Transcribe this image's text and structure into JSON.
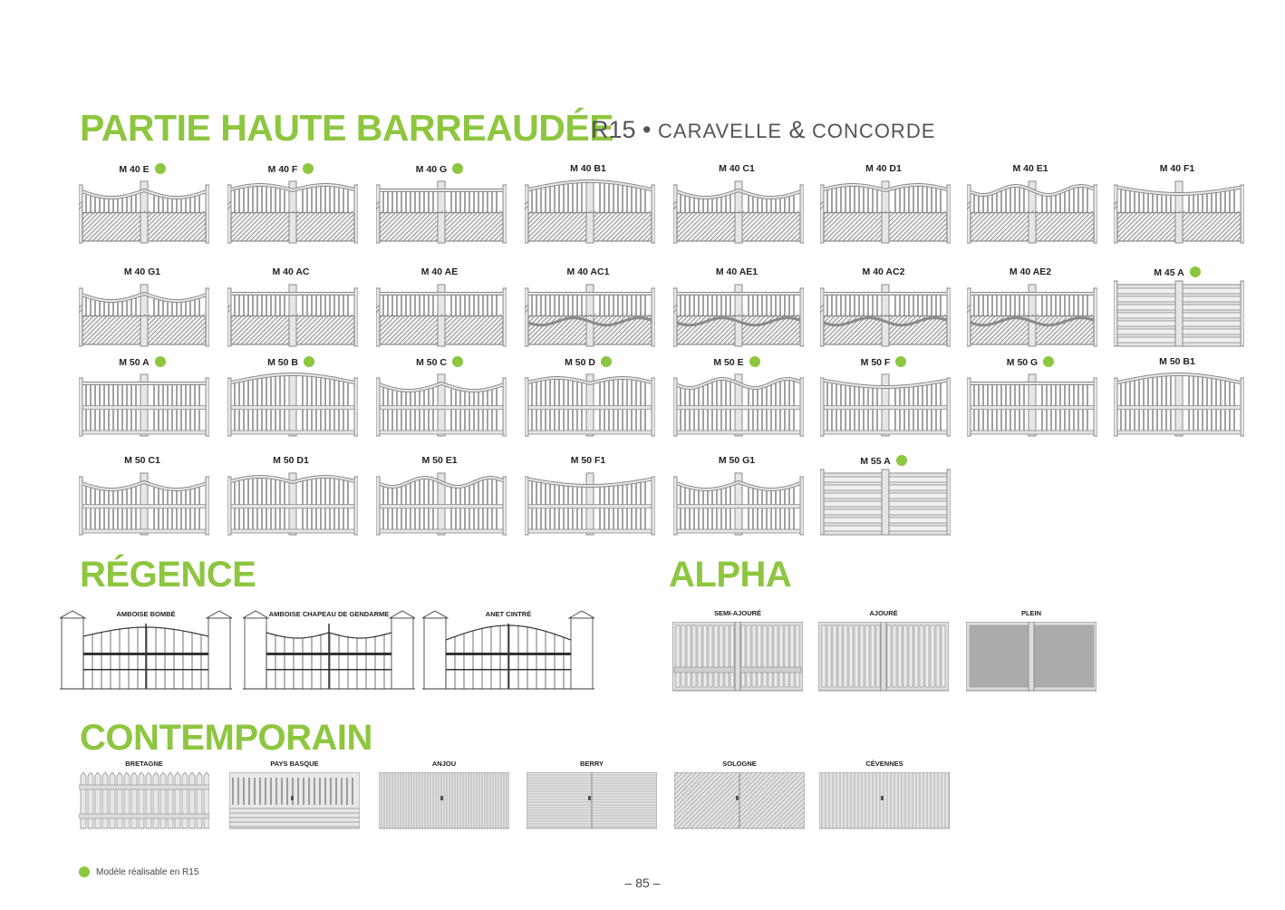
{
  "header": {
    "title": "PARTIE HAUTE BARREAUDÉE",
    "subtitle_r15": "R15",
    "subtitle_sep": "•",
    "subtitle_models": "CARAVELLE",
    "subtitle_amp": "&",
    "subtitle_models2": "CONCORDE"
  },
  "barreaudee": {
    "rows": [
      [
        {
          "label": "M 40 E",
          "r15": true,
          "style": "low",
          "top": "concave"
        },
        {
          "label": "M 40 F",
          "r15": true,
          "style": "low",
          "top": "convex"
        },
        {
          "label": "M 40 G",
          "r15": true,
          "style": "low",
          "top": "straight"
        },
        {
          "label": "M 40 B1",
          "r15": false,
          "style": "arch",
          "top": "arch"
        },
        {
          "label": "M 40 C1",
          "r15": false,
          "style": "arch",
          "top": "concave"
        },
        {
          "label": "M 40 D1",
          "r15": false,
          "style": "arch",
          "top": "convex"
        },
        {
          "label": "M 40 E1",
          "r15": false,
          "style": "arch",
          "top": "wave"
        },
        {
          "label": "M 40 F1",
          "r15": false,
          "style": "arch",
          "top": "inv"
        }
      ],
      [
        {
          "label": "M 40 G1",
          "r15": false,
          "style": "arch",
          "top": "concave"
        },
        {
          "label": "M 40 AC",
          "r15": false,
          "style": "arch",
          "top": "straight"
        },
        {
          "label": "M 40 AE",
          "r15": false,
          "style": "arch",
          "top": "straight"
        },
        {
          "label": "M 40 AC1",
          "r15": false,
          "style": "band",
          "top": "straight"
        },
        {
          "label": "M 40 AE1",
          "r15": false,
          "style": "band",
          "top": "straight"
        },
        {
          "label": "M 40 AC2",
          "r15": false,
          "style": "band",
          "top": "straight"
        },
        {
          "label": "M 40 AE2",
          "r15": false,
          "style": "band",
          "top": "straight"
        },
        {
          "label": "M 45 A",
          "r15": true,
          "style": "horiz",
          "top": "straight"
        }
      ],
      [
        {
          "label": "M 50 A",
          "r15": true,
          "style": "bars",
          "top": "straight"
        },
        {
          "label": "M 50 B",
          "r15": true,
          "style": "bars",
          "top": "arch"
        },
        {
          "label": "M 50 C",
          "r15": true,
          "style": "bars",
          "top": "concave"
        },
        {
          "label": "M 50 D",
          "r15": true,
          "style": "bars",
          "top": "convex"
        },
        {
          "label": "M 50 E",
          "r15": true,
          "style": "bars",
          "top": "wave"
        },
        {
          "label": "M 50 F",
          "r15": true,
          "style": "bars",
          "top": "inv"
        },
        {
          "label": "M 50 G",
          "r15": true,
          "style": "bars",
          "top": "straight"
        },
        {
          "label": "M 50 B1",
          "r15": false,
          "style": "bars",
          "top": "arch"
        }
      ],
      [
        {
          "label": "M 50 C1",
          "r15": false,
          "style": "bars",
          "top": "concave"
        },
        {
          "label": "M 50 D1",
          "r15": false,
          "style": "bars",
          "top": "convex"
        },
        {
          "label": "M 50 E1",
          "r15": false,
          "style": "bars",
          "top": "wave"
        },
        {
          "label": "M 50 F1",
          "r15": false,
          "style": "bars",
          "top": "inv"
        },
        {
          "label": "M 50 G1",
          "r15": false,
          "style": "bars",
          "top": "concave"
        },
        {
          "label": "M 55 A",
          "r15": true,
          "style": "horiz",
          "top": "straight"
        }
      ]
    ]
  },
  "regence": {
    "title": "RÉGENCE",
    "items": [
      {
        "label": "AMBOISE BOMBÉ"
      },
      {
        "label": "AMBOISE CHAPEAU DE GENDARME"
      },
      {
        "label": "ANET CINTRÉ"
      }
    ]
  },
  "alpha": {
    "title": "ALPHA",
    "items": [
      {
        "label": "SEMI-AJOURÉ"
      },
      {
        "label": "AJOURÉ"
      },
      {
        "label": "PLEIN"
      }
    ]
  },
  "contemporain": {
    "title": "CONTEMPORAIN",
    "items": [
      {
        "label": "BRETAGNE"
      },
      {
        "label": "PAYS BASQUE"
      },
      {
        "label": "ANJOU"
      },
      {
        "label": "BERRY"
      },
      {
        "label": "SOLOGNE"
      },
      {
        "label": "CÉVENNES"
      }
    ]
  },
  "legend": {
    "text": "Modèle réalisable en R15"
  },
  "page": {
    "number": "– 85 –"
  },
  "colors": {
    "accent": "#8dc63f",
    "gate_fill": "#e6e6e6",
    "gate_stroke": "#8a8a8a"
  }
}
